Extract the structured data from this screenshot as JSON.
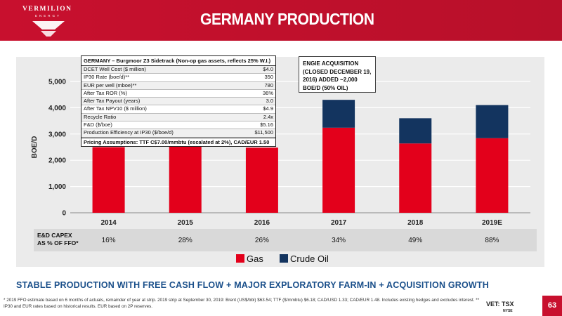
{
  "header": {
    "logo_text": "VERMILION",
    "logo_sub": "ENERGY",
    "title": "GERMANY PRODUCTION"
  },
  "info_table": {
    "heading": "GERMANY – Burgmoor Z3 Sidetrack  (Non-op gas assets, reflects 25% W.I.)",
    "rows": [
      {
        "label": "DCET Well Cost ($ million)",
        "value": "$4.0"
      },
      {
        "label": "IP30 Rate (boe/d)**",
        "value": "350"
      },
      {
        "label": "EUR per well (mboe)**",
        "value": "780"
      },
      {
        "label": "After Tax ROR (%)",
        "value": "36%"
      },
      {
        "label": "After Tax Payout (years)",
        "value": "3.0"
      },
      {
        "label": "After Tax NPV10 ($ million)",
        "value": "$4.9"
      },
      {
        "label": "Recycle Ratio",
        "value": "2.4x"
      },
      {
        "label": "F&D ($/boe)",
        "value": "$5.16"
      },
      {
        "label": "Production Efficiency at IP30 ($/boe/d)",
        "value": "$11,500"
      }
    ],
    "footer": "Pricing Assumptions: TTF C$7.00/mmbtu (escalated at 2%), CAD/EUR 1.50"
  },
  "callout": {
    "text": "ENGIE ACQUISITION (CLOSED DECEMBER 19, 2016) ADDED ~2,000 BOE/D (50% OIL)"
  },
  "capex": {
    "label_line1": "E&D CAPEX",
    "label_line2": "AS % OF FFO*",
    "values": [
      "16%",
      "28%",
      "26%",
      "34%",
      "49%",
      "88%"
    ]
  },
  "chart_data": {
    "type": "bar",
    "stacked": true,
    "categories": [
      "2014",
      "2015",
      "2016",
      "2017",
      "2018",
      "2019E"
    ],
    "series": [
      {
        "name": "Gas",
        "color": "#e3001b",
        "values": [
          2500,
          2630,
          2480,
          3240,
          2640,
          2840
        ]
      },
      {
        "name": "Crude Oil",
        "color": "#13345f",
        "values": [
          0,
          0,
          0,
          1060,
          960,
          1260
        ]
      }
    ],
    "ylabel": "BOE/D",
    "ylim": [
      0,
      5000
    ],
    "yticks": [
      "0",
      "1,000",
      "2,000",
      "3,000",
      "4,000",
      "5,000"
    ],
    "ytick_values": [
      0,
      1000,
      2000,
      3000,
      4000,
      5000
    ],
    "grid": true,
    "legend": "bottom-center"
  },
  "bottom_title": "STABLE PRODUCTION WITH FREE CASH FLOW + MAJOR EXPLORATORY FARM-IN + ACQUISITION GROWTH",
  "footnote": "* 2019 FFO estimate based on 6 months of actuals, remainder of year at strip. 2019 strip at September 30, 2019: Brent (US$/bbl) $63.54; TTF ($/mmbtu) $6.18; CAD/USD 1.33; CAD/EUR 1.48. Includes existing hedges and excludes interest.  ** IP30 and EUR rates based on historical results. EUR based on 2P reserves.",
  "footer_logos": {
    "vet": "VET: TSX",
    "nyse": "NYSE"
  },
  "page_number": "63"
}
